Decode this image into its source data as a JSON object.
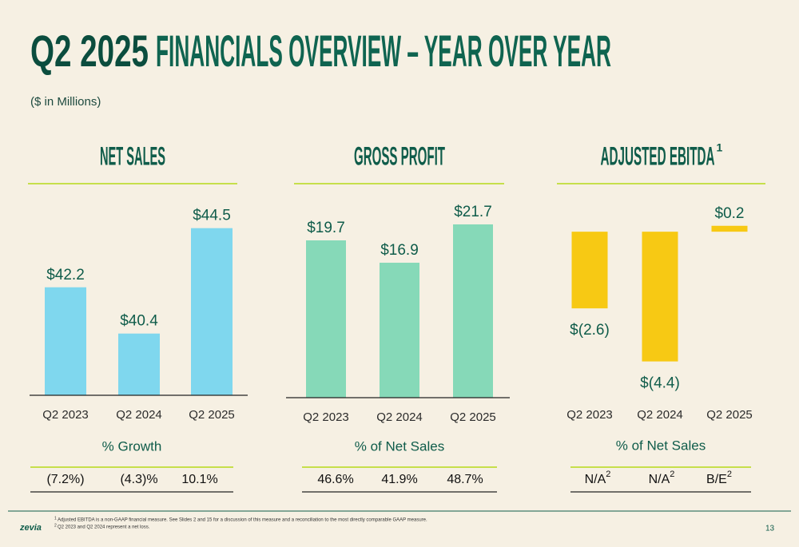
{
  "title": {
    "highlight": "Q2 2025",
    "text": "FINANCIALS OVERVIEW – YEAR OVER YEAR"
  },
  "subtitle": "($ in Millions)",
  "chart_data": [
    {
      "type": "bar",
      "title": "NET SALES",
      "categories": [
        "Q2 2023",
        "Q2 2024",
        "Q2 2025"
      ],
      "values": [
        42.2,
        40.4,
        44.5
      ],
      "value_labels": [
        "$42.2",
        "$40.4",
        "$44.5"
      ],
      "color": "#7fd7ee",
      "ylim": [
        38,
        45.5
      ],
      "metric": {
        "label": "% Growth",
        "values": [
          {
            "text": "(7.2%)"
          },
          {
            "text": "(4.3)%"
          },
          {
            "text": "10.1%"
          }
        ]
      }
    },
    {
      "type": "bar",
      "title": "GROSS PROFIT",
      "categories": [
        "Q2 2023",
        "Q2 2024",
        "Q2 2025"
      ],
      "values": [
        19.7,
        16.9,
        21.7
      ],
      "value_labels": [
        "$19.7",
        "$16.9",
        "$21.7"
      ],
      "color": "#86d9b8",
      "ylim": [
        0,
        23
      ],
      "metric": {
        "label": "% of Net Sales",
        "values": [
          {
            "text": "46.6%"
          },
          {
            "text": "41.9%"
          },
          {
            "text": "48.7%"
          }
        ]
      }
    },
    {
      "type": "bar",
      "title": "ADJUSTED EBITDA",
      "title_note": "1",
      "categories": [
        "Q2 2023",
        "Q2 2024",
        "Q2 2025"
      ],
      "values": [
        -2.6,
        -4.4,
        0.2
      ],
      "value_labels": [
        "$(2.6)",
        "$(4.4)",
        "$0.2"
      ],
      "color": "#f7c914",
      "ylim": [
        -4.6,
        0.6
      ],
      "metric": {
        "label": "% of Net Sales",
        "values": [
          {
            "text": "N/A",
            "note": "2"
          },
          {
            "text": "N/A",
            "note": "2"
          },
          {
            "text": "B/E",
            "note": "2"
          }
        ]
      }
    }
  ],
  "footer": {
    "logo": "zevia",
    "footnotes": [
      {
        "mark": "1",
        "text": "Adjusted EBITDA is a non-GAAP financial measure. See Slides 2 and 15 for a discussion of this measure and a reconciliation to the most directly comparable GAAP measure."
      },
      {
        "mark": "2",
        "text": "Q2 2023 and Q2 2024 represent a net loss."
      }
    ],
    "page": "13"
  }
}
